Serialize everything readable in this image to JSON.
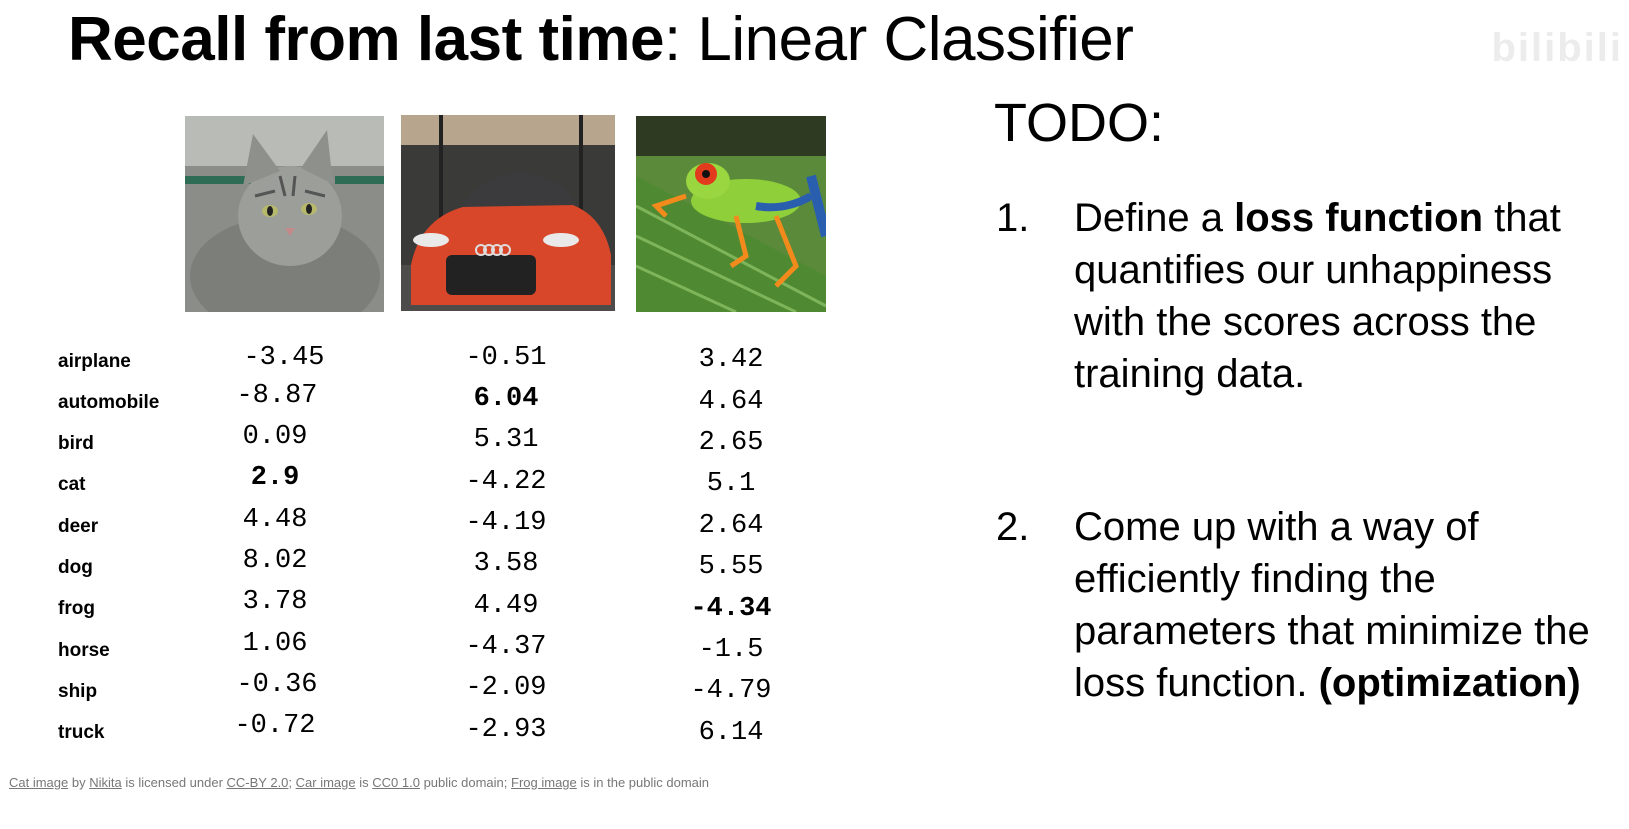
{
  "title": {
    "bold": "Recall from last time",
    "rest": ": Linear Classifier"
  },
  "watermark": "bilibili",
  "images": [
    {
      "icon": "cat-photo"
    },
    {
      "icon": "car-photo"
    },
    {
      "icon": "frog-photo"
    }
  ],
  "labels": [
    "airplane",
    "automobile",
    "bird",
    "cat",
    "deer",
    "dog",
    "frog",
    "horse",
    "ship",
    "truck"
  ],
  "columns": [
    {
      "name": "cat",
      "values": [
        "-3.45",
        "-8.87",
        "0.09",
        "2.9",
        "4.48",
        "8.02",
        "3.78",
        "1.06",
        "-0.36",
        "-0.72"
      ],
      "highlight_index": 3
    },
    {
      "name": "car",
      "values": [
        "-0.51",
        "6.04",
        "5.31",
        "-4.22",
        "-4.19",
        "3.58",
        "4.49",
        "-4.37",
        "-2.09",
        "-2.93"
      ],
      "highlight_index": 1
    },
    {
      "name": "frog",
      "values": [
        "3.42",
        "4.64",
        "2.65",
        "5.1",
        "2.64",
        "5.55",
        "-4.34",
        "-1.5",
        "-4.79",
        "6.14"
      ],
      "highlight_index": 6
    }
  ],
  "todo": {
    "title": "TODO:",
    "item1": {
      "num": "1.",
      "pre": "Define a ",
      "bold": "loss function",
      "post": " that quantifies our unhappiness with the scores across the training data."
    },
    "item2": {
      "num": "2.",
      "text": "Come up with a way of efficiently finding the parameters that minimize the loss function. ",
      "bold": "(optimization)"
    }
  },
  "credits": {
    "cat_image": "Cat image",
    "by": " by ",
    "nikita": "Nikita",
    "licensed": " is licensed under ",
    "ccby": "CC-BY 2.0",
    "sep1": "; ",
    "car_image": "Car image",
    "is": " is ",
    "cc0": "CC0 1.0",
    "pd1": " public domain; ",
    "frog_image": "Frog image",
    "pd2": " is in the public domain"
  }
}
